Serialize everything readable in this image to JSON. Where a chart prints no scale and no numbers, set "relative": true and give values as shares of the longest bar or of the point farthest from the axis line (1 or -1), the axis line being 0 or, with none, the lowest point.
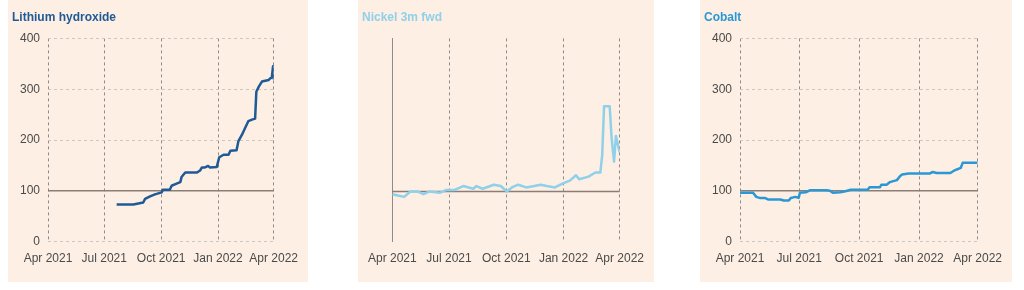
{
  "chart_data": [
    {
      "type": "line",
      "title": "Lithium hydroxide",
      "marker": "none",
      "grid": true,
      "x": [
        "2021-07-21",
        "2021-08-17",
        "2021-09-02",
        "2021-09-05",
        "2021-09-13",
        "2021-09-21",
        "2021-10-02",
        "2021-10-04",
        "2021-10-15",
        "2021-10-18",
        "2021-10-26",
        "2021-11-01",
        "2021-11-03",
        "2021-11-09",
        "2021-11-28",
        "2021-12-03",
        "2021-12-06",
        "2021-12-11",
        "2021-12-16",
        "2021-12-19",
        "2021-12-30",
        "2022-01-03",
        "2022-01-10",
        "2022-01-18",
        "2022-01-21",
        "2022-01-31",
        "2022-02-03",
        "2022-02-09",
        "2022-02-14",
        "2022-02-19",
        "2022-02-25",
        "2022-03-02",
        "2022-03-04",
        "2022-03-08",
        "2022-03-13",
        "2022-03-24",
        "2022-03-26",
        "2022-03-29",
        "2022-03-31",
        "2022-04-01"
      ],
      "series": [
        {
          "color": "#1f5a96",
          "values": [
            73,
            73,
            77,
            84,
            89,
            93,
            97,
            102,
            102,
            110,
            114,
            117,
            127,
            136,
            136,
            140,
            146,
            146,
            149,
            146,
            147,
            166,
            171,
            171,
            179,
            180,
            198,
            211,
            224,
            237,
            240,
            242,
            295,
            305,
            315,
            318,
            321,
            323,
            345,
            321
          ]
        }
      ],
      "xlim": [
        "2021-04-01",
        "2022-04-01"
      ],
      "xticks": [
        {
          "value": "2021-04-01",
          "label": "Apr 2021"
        },
        {
          "value": "2021-07-01",
          "label": "Jul 2021"
        },
        {
          "value": "2021-10-01",
          "label": "Oct 2021"
        },
        {
          "value": "2022-01-01",
          "label": "Jan 2022"
        },
        {
          "value": "2022-04-01",
          "label": "Apr 2022"
        }
      ],
      "ylim": [
        0,
        400
      ],
      "yticks": [
        0,
        100,
        200,
        300,
        400
      ],
      "ref_lines": [
        {
          "axis": "y",
          "value": 100,
          "color": "#8a7e76"
        }
      ]
    },
    {
      "type": "line",
      "title": "Nickel 3m fwd",
      "marker": "none",
      "grid": "x",
      "relative": true,
      "tick_labels": "x",
      "x": [
        "2021-04-01",
        "2021-04-10",
        "2021-04-20",
        "2021-04-30",
        "2021-05-11",
        "2021-05-21",
        "2021-05-31",
        "2021-06-16",
        "2021-06-26",
        "2021-07-09",
        "2021-07-24",
        "2021-08-09",
        "2021-08-14",
        "2021-08-24",
        "2021-09-11",
        "2021-09-22",
        "2021-10-02",
        "2021-10-10",
        "2021-10-20",
        "2021-11-02",
        "2021-11-15",
        "2021-11-25",
        "2021-12-05",
        "2021-12-18",
        "2021-12-31",
        "2022-01-11",
        "2022-01-21",
        "2022-01-26",
        "2022-02-10",
        "2022-02-21",
        "2022-03-01",
        "2022-03-04",
        "2022-03-07",
        "2022-03-16",
        "2022-03-19",
        "2022-03-23",
        "2022-03-26",
        "2022-04-01"
      ],
      "series": [
        {
          "color": "#8fd0ea",
          "values": [
            0.35,
            0.34,
            0.33,
            0.37,
            0.37,
            0.35,
            0.37,
            0.36,
            0.38,
            0.38,
            0.41,
            0.39,
            0.41,
            0.39,
            0.42,
            0.41,
            0.37,
            0.4,
            0.42,
            0.4,
            0.41,
            0.42,
            0.41,
            0.4,
            0.43,
            0.45,
            0.49,
            0.46,
            0.48,
            0.51,
            0.51,
            0.64,
            1,
            1,
            0.77,
            0.59,
            0.78,
            0.66
          ]
        }
      ],
      "xlim": [
        "2021-04-01",
        "2022-04-01"
      ],
      "xticks": [
        {
          "value": "2021-04-01",
          "label": "Apr 2021"
        },
        {
          "value": "2021-07-01",
          "label": "Jul 2021"
        },
        {
          "value": "2021-10-01",
          "label": "Oct 2021"
        },
        {
          "value": "2022-01-01",
          "label": "Jan 2022"
        },
        {
          "value": "2022-04-01",
          "label": "Apr 2022"
        }
      ],
      "ref_lines": [
        {
          "axis": "y",
          "value": 0.37,
          "color": "#8a7e76"
        }
      ]
    },
    {
      "type": "line",
      "title": "Cobalt",
      "marker": "none",
      "grid": true,
      "x": [
        "2021-04-01",
        "2021-04-21",
        "2021-04-26",
        "2021-05-01",
        "2021-05-09",
        "2021-05-14",
        "2021-05-25",
        "2021-06-02",
        "2021-06-07",
        "2021-06-15",
        "2021-06-18",
        "2021-06-25",
        "2021-06-30",
        "2021-07-02",
        "2021-07-11",
        "2021-07-17",
        "2021-08-12",
        "2021-08-17",
        "2021-08-22",
        "2021-09-02",
        "2021-09-10",
        "2021-09-18",
        "2021-10-01",
        "2021-10-14",
        "2021-10-17",
        "2021-11-02",
        "2021-11-04",
        "2021-11-12",
        "2021-11-17",
        "2021-11-28",
        "2021-12-03",
        "2021-12-06",
        "2021-12-16",
        "2022-01-17",
        "2022-01-22",
        "2022-01-28",
        "2022-02-18",
        "2022-02-23",
        "2022-02-28",
        "2022-03-06",
        "2022-03-09",
        "2022-04-01"
      ],
      "series": [
        {
          "color": "#2b98d6",
          "values": [
            96,
            96,
            88,
            86,
            86,
            83,
            83,
            83,
            81,
            81,
            86,
            88,
            86,
            96,
            97,
            101,
            101,
            100,
            96,
            97,
            99,
            102,
            102,
            102,
            107,
            107,
            112,
            112,
            117,
            121,
            129,
            132,
            134,
            134,
            137,
            135,
            135,
            139,
            142,
            145,
            155,
            155
          ]
        }
      ],
      "xlim": [
        "2021-04-01",
        "2022-04-01"
      ],
      "xticks": [
        {
          "value": "2021-04-01",
          "label": "Apr 2021"
        },
        {
          "value": "2021-07-01",
          "label": "Jul 2021"
        },
        {
          "value": "2021-10-01",
          "label": "Oct 2021"
        },
        {
          "value": "2022-01-01",
          "label": "Jan 2022"
        },
        {
          "value": "2022-04-01",
          "label": "Apr 2022"
        }
      ],
      "ylim": [
        0,
        400
      ],
      "yticks": [
        0,
        100,
        200,
        300,
        400
      ],
      "ref_lines": [
        {
          "axis": "y",
          "value": 100,
          "color": "#8a7e76"
        }
      ]
    }
  ]
}
